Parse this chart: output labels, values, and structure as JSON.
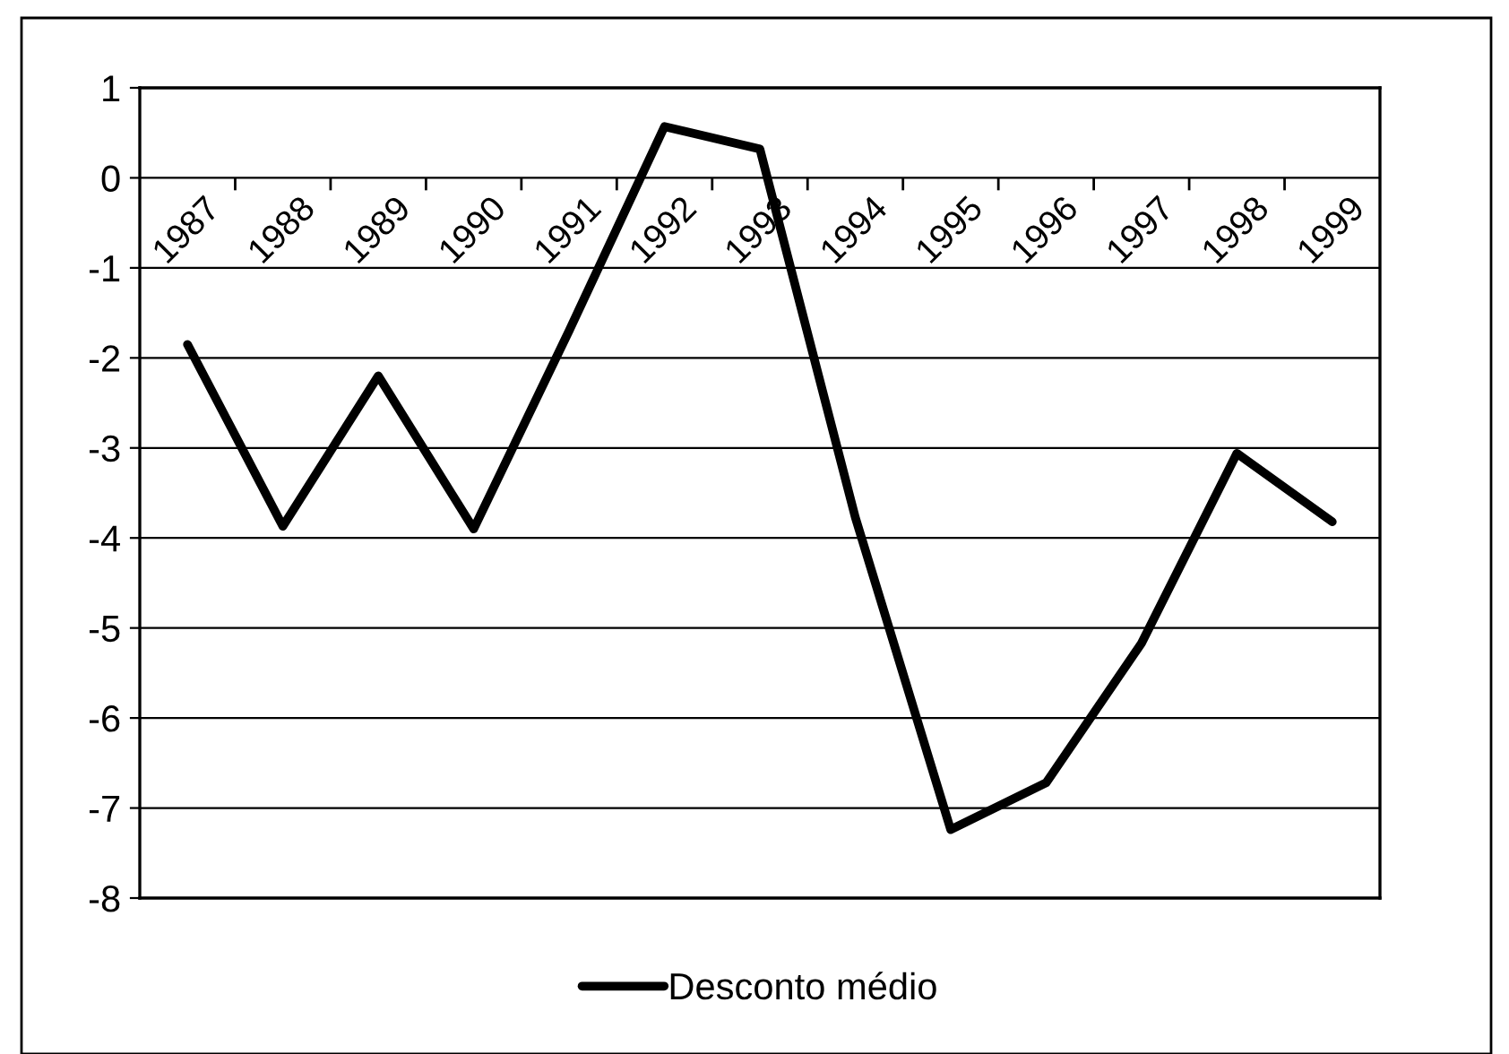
{
  "chart_data": {
    "type": "line",
    "categories": [
      "1987",
      "1988",
      "1989",
      "1990",
      "1991",
      "1992",
      "1993",
      "1994",
      "1995",
      "1996",
      "1997",
      "1998",
      "1999"
    ],
    "series": [
      {
        "name": "Desconto médio",
        "color": "#000000",
        "values": [
          -1.85,
          -3.87,
          -2.2,
          -3.9,
          -1.7,
          0.57,
          0.32,
          -3.77,
          -7.24,
          -6.72,
          -5.17,
          -3.06,
          -3.82
        ]
      }
    ],
    "ylim": [
      -8,
      1
    ],
    "yticks": [
      -8,
      -7,
      -6,
      -5,
      -4,
      -3,
      -2,
      -1,
      0,
      1
    ],
    "grid": "y",
    "legend": "bottom",
    "marker": "none",
    "line_style": "solid"
  }
}
